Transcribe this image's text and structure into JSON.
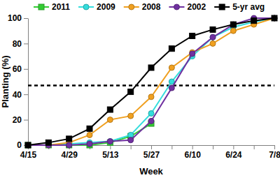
{
  "chart_data": {
    "type": "line",
    "x_label": "Week",
    "y_label": "Planting (%)",
    "categories": [
      "4/15",
      null,
      "4/29",
      null,
      "5/13",
      null,
      "5/27",
      null,
      "6/10",
      null,
      "6/24",
      null,
      "7/8"
    ],
    "ylim": [
      0,
      100
    ],
    "yticks": [
      0,
      20,
      40,
      60,
      80,
      100
    ],
    "legend": "top",
    "reference_value": 47,
    "series": [
      {
        "name": "2011",
        "color": "#33cc33",
        "marker": "square",
        "values": [
          0,
          0,
          0,
          0,
          2,
          7,
          17,
          null,
          null,
          null,
          null,
          null,
          null
        ]
      },
      {
        "name": "2009",
        "color": "#33dddd",
        "marker": "circle",
        "values": [
          0,
          0,
          1,
          2,
          3,
          8,
          25,
          50,
          70,
          85,
          93,
          97,
          100
        ]
      },
      {
        "name": "2008",
        "color": "#f0a020",
        "marker": "circle",
        "values": [
          0,
          0,
          2,
          8,
          20,
          23,
          38,
          61,
          73,
          80,
          90,
          95,
          100
        ]
      },
      {
        "name": "2002",
        "color": "#7030a0",
        "marker": "circle",
        "values": [
          0,
          0,
          0,
          1,
          3,
          4,
          19,
          45,
          72,
          85,
          95,
          100,
          100
        ]
      },
      {
        "name": "5-yr avg",
        "color": "#000000",
        "marker": "square",
        "values": [
          0,
          2,
          5,
          13,
          28,
          42,
          61,
          76,
          86,
          91,
          95,
          98,
          100
        ]
      }
    ]
  }
}
